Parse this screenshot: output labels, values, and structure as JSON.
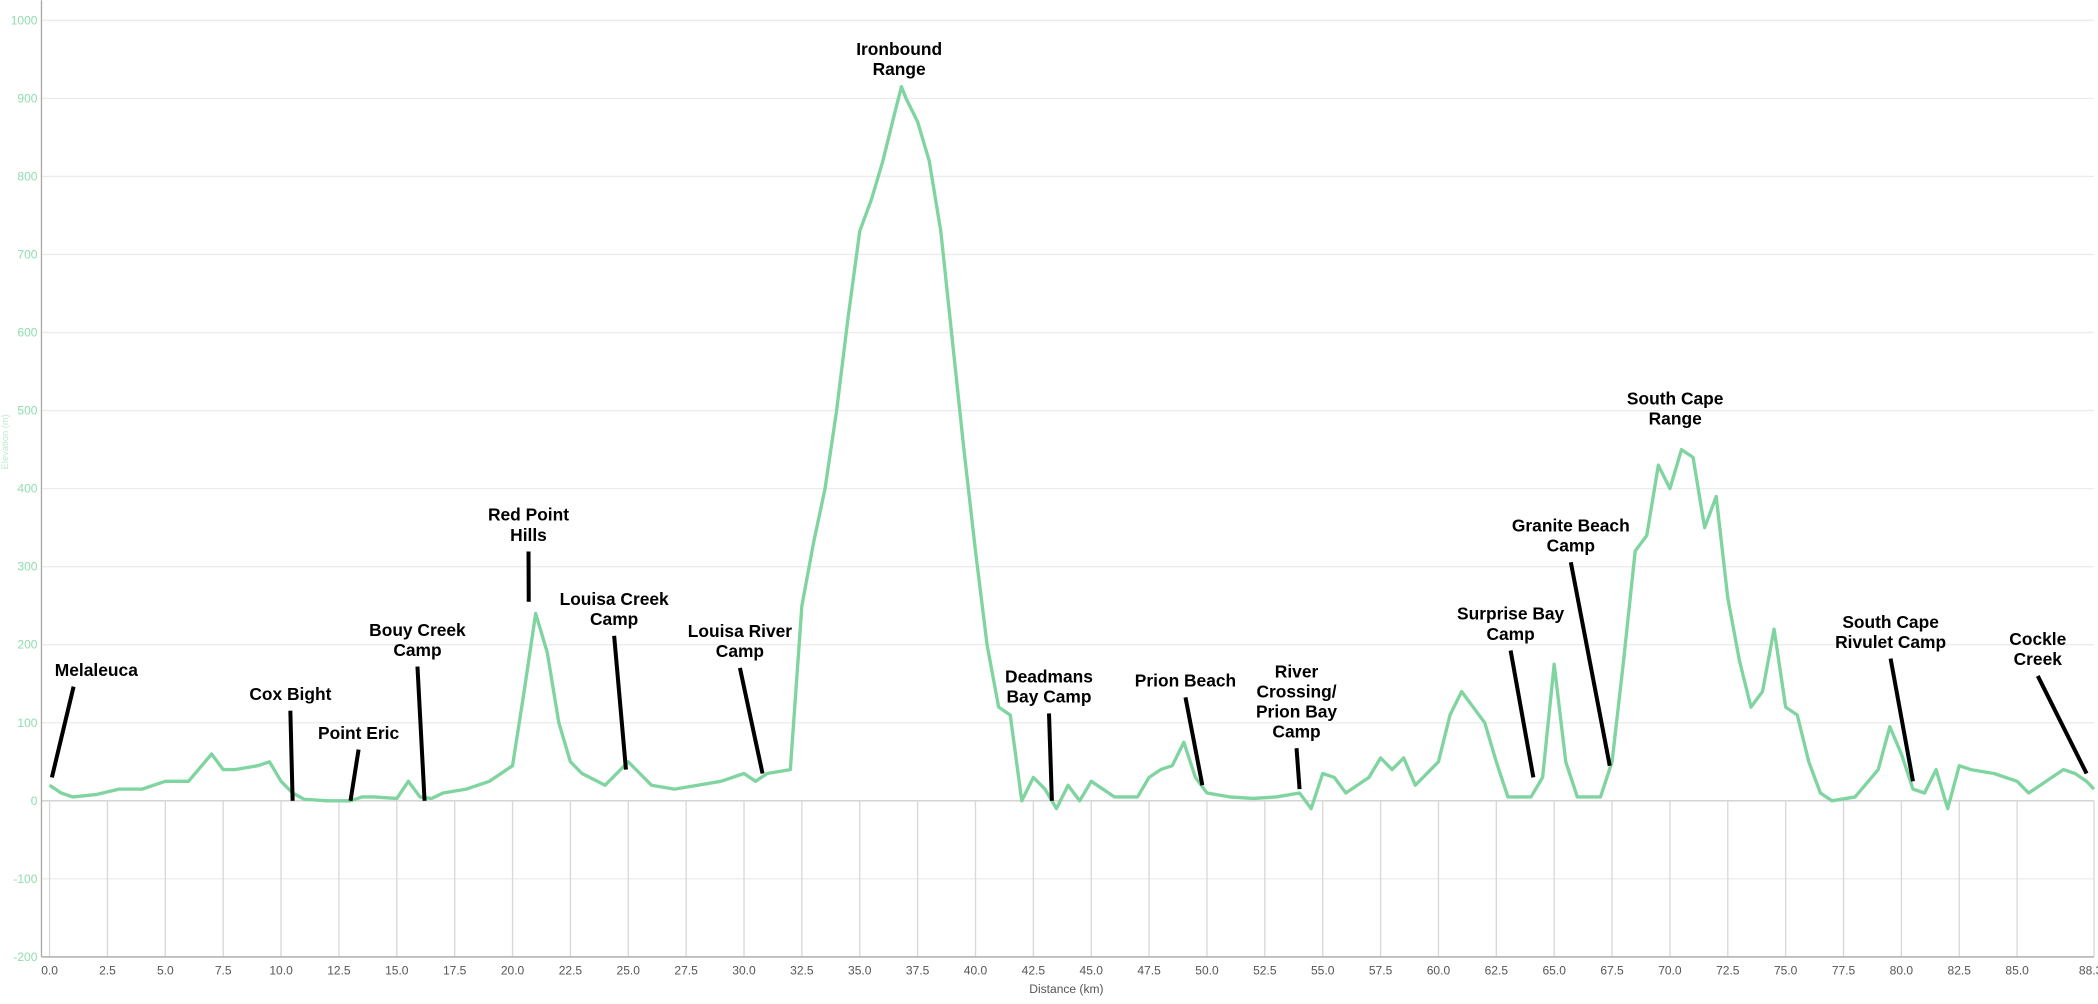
{
  "chart_data": {
    "type": "line",
    "xlabel": "Distance (km)",
    "ylabel": "Elevation (m)",
    "xlim": [
      -0.35,
      88.32
    ],
    "ylim": [
      -200,
      1000
    ],
    "yticks": [
      -200,
      -100,
      0,
      100,
      200,
      300,
      400,
      500,
      600,
      700,
      800,
      900,
      1000
    ],
    "xticks": [
      {
        "value": 0,
        "label": "0.0"
      },
      2.5,
      {
        "value": 5,
        "label": "5.0"
      },
      7.5,
      {
        "value": 10,
        "label": "10.0"
      },
      12.5,
      {
        "value": 15,
        "label": "15.0"
      },
      17.5,
      {
        "value": 20,
        "label": "20.0"
      },
      22.5,
      {
        "value": 25,
        "label": "25.0"
      },
      27.5,
      {
        "value": 30,
        "label": "30.0"
      },
      32.5,
      {
        "value": 35,
        "label": "35.0"
      },
      37.5,
      {
        "value": 40,
        "label": "40.0"
      },
      42.5,
      {
        "value": 45,
        "label": "45.0"
      },
      47.5,
      {
        "value": 50,
        "label": "50.0"
      },
      52.5,
      {
        "value": 55,
        "label": "55.0"
      },
      57.5,
      {
        "value": 60,
        "label": "60.0"
      },
      62.5,
      {
        "value": 65,
        "label": "65.0"
      },
      67.5,
      {
        "value": 70,
        "label": "70.0"
      },
      72.5,
      {
        "value": 75,
        "label": "75.0"
      },
      77.5,
      {
        "value": 80,
        "label": "80.0"
      },
      82.5,
      {
        "value": 85,
        "label": "85.0"
      },
      88.32
    ],
    "grid": true,
    "series": [
      {
        "name": "Elevation",
        "color": "#7fd4a0",
        "x": [
          0,
          0.5,
          1,
          2,
          3,
          4,
          5,
          6,
          7,
          7.5,
          8,
          9,
          9.5,
          10,
          10.5,
          11,
          12,
          13,
          13.5,
          14,
          15,
          15.5,
          16,
          16.5,
          17,
          18,
          19,
          20,
          20.5,
          21,
          21.5,
          22,
          22.5,
          23,
          24,
          24.5,
          25,
          25.5,
          26,
          27,
          28,
          29,
          30,
          30.5,
          31,
          32,
          32.5,
          33,
          33.5,
          34,
          34.5,
          35,
          35.5,
          36,
          36.5,
          36.8,
          37,
          37.5,
          38,
          38.5,
          39,
          39.5,
          40,
          40.5,
          41,
          41.5,
          42,
          42.5,
          43,
          43.5,
          44,
          44.5,
          45,
          46,
          47,
          47.5,
          48,
          48.5,
          49,
          49.5,
          50,
          51,
          52,
          53,
          54,
          54.5,
          55,
          55.5,
          56,
          57,
          57.5,
          58,
          58.5,
          59,
          60,
          60.5,
          61,
          61.5,
          62,
          62.5,
          63,
          64,
          64.5,
          65,
          65.5,
          66,
          67,
          67.5,
          68,
          68.5,
          69,
          69.5,
          70,
          70.5,
          71,
          71.5,
          72,
          72.5,
          73,
          73.5,
          74,
          74.5,
          75,
          75.5,
          76,
          76.5,
          77,
          78,
          79,
          79.5,
          80,
          80.5,
          81,
          81.5,
          82,
          82.5,
          83,
          84,
          85,
          85.5,
          86,
          86.5,
          87,
          87.5,
          88,
          88.32
        ],
        "values": [
          20,
          10,
          5,
          8,
          15,
          15,
          25,
          25,
          60,
          40,
          40,
          45,
          50,
          25,
          10,
          2,
          0,
          0,
          5,
          5,
          3,
          25,
          5,
          3,
          10,
          15,
          25,
          45,
          140,
          240,
          190,
          100,
          50,
          35,
          20,
          35,
          50,
          35,
          20,
          15,
          20,
          25,
          35,
          25,
          35,
          40,
          250,
          330,
          400,
          500,
          620,
          730,
          770,
          820,
          880,
          915,
          900,
          870,
          820,
          730,
          590,
          450,
          320,
          200,
          120,
          110,
          0,
          30,
          15,
          -10,
          20,
          0,
          25,
          5,
          5,
          30,
          40,
          45,
          75,
          30,
          10,
          5,
          3,
          5,
          10,
          -10,
          35,
          30,
          10,
          30,
          55,
          40,
          55,
          20,
          50,
          110,
          140,
          120,
          100,
          50,
          5,
          5,
          30,
          175,
          50,
          5,
          5,
          50,
          180,
          320,
          340,
          430,
          400,
          450,
          440,
          350,
          390,
          260,
          180,
          120,
          140,
          220,
          120,
          110,
          50,
          10,
          0,
          5,
          40,
          95,
          60,
          15,
          10,
          40,
          -10,
          45,
          40,
          35,
          25,
          10,
          20,
          30,
          40,
          35,
          25,
          15
        ]
      }
    ],
    "annotations": [
      {
        "text": [
          "Melaleuca"
        ],
        "x": 0.1,
        "y": 30
      },
      {
        "text": [
          "Cox Bight"
        ],
        "x": 10.5,
        "y": 0
      },
      {
        "text": [
          "Point Eric"
        ],
        "x": 13,
        "y": 0
      },
      {
        "text": [
          "Bouy Creek",
          "Camp"
        ],
        "x": 16.2,
        "y": 0
      },
      {
        "text": [
          "Red Point",
          "Hills"
        ],
        "x": 20.7,
        "y": 255
      },
      {
        "text": [
          "Louisa Creek",
          "Camp"
        ],
        "x": 24.9,
        "y": 40
      },
      {
        "text": [
          "Louisa River",
          "Camp"
        ],
        "x": 30.8,
        "y": 35
      },
      {
        "text": [
          "Ironbound",
          "Range"
        ]
      },
      {
        "text": [
          "Deadmans",
          "Bay Camp"
        ],
        "x": 43.3,
        "y": 0
      },
      {
        "text": [
          "Prion Beach"
        ],
        "x": 49.8,
        "y": 20
      },
      {
        "text": [
          "River",
          "Crossing/",
          "Prion Bay",
          "Camp"
        ],
        "x": 54,
        "y": 15
      },
      {
        "text": [
          "Surprise Bay",
          "Camp"
        ],
        "x": 64.1,
        "y": 30
      },
      {
        "text": [
          "Granite Beach",
          "Camp"
        ],
        "x": 67.4,
        "y": 45
      },
      {
        "text": [
          "South Cape",
          "Range"
        ]
      },
      {
        "text": [
          "South Cape",
          "Rivulet Camp"
        ],
        "x": 80.5,
        "y": 25
      },
      {
        "text": [
          "Cockle",
          "Creek"
        ],
        "x": 88,
        "y": 35
      }
    ]
  }
}
